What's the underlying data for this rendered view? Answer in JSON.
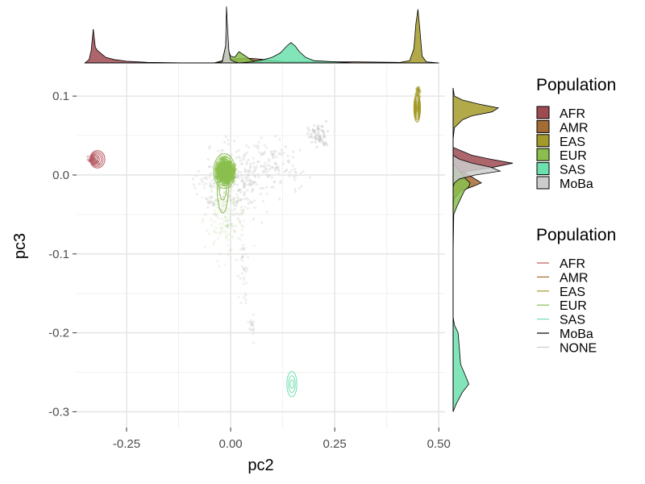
{
  "chart_data": {
    "type": "scatter",
    "xlabel": "pc2",
    "ylabel": "pc3",
    "xlim": [
      -0.37,
      0.515
    ],
    "ylim": [
      -0.32,
      0.14
    ],
    "x_ticks": [
      {
        "value": -0.25,
        "label": "-0.25"
      },
      {
        "value": 0.0,
        "label": "0.00"
      },
      {
        "value": 0.25,
        "label": "0.25"
      },
      {
        "value": 0.5,
        "label": "0.50"
      }
    ],
    "y_ticks": [
      {
        "value": 0.1,
        "label": "0.1"
      },
      {
        "value": 0.0,
        "label": "0.0"
      },
      {
        "value": -0.1,
        "label": "-0.1"
      },
      {
        "value": -0.2,
        "label": "-0.2"
      },
      {
        "value": -0.3,
        "label": "-0.3"
      }
    ],
    "grid": true,
    "legend_position": "right",
    "legends": [
      {
        "title": "Population",
        "kind": "fill",
        "entries": [
          {
            "label": "AFR",
            "color": "#9e4b52"
          },
          {
            "label": "AMR",
            "color": "#a56b35"
          },
          {
            "label": "EAS",
            "color": "#a49a2a"
          },
          {
            "label": "EUR",
            "color": "#8abf4f"
          },
          {
            "label": "SAS",
            "color": "#6ce0ad"
          },
          {
            "label": "MoBa",
            "color": "#cccccc"
          }
        ]
      },
      {
        "title": "Population",
        "kind": "line",
        "entries": [
          {
            "label": "AFR",
            "color": "#c0575f"
          },
          {
            "label": "AMR",
            "color": "#a56b35"
          },
          {
            "label": "EAS",
            "color": "#a49a2a"
          },
          {
            "label": "EUR",
            "color": "#8abf4f"
          },
          {
            "label": "SAS",
            "color": "#6ce0ad"
          },
          {
            "label": "MoBa",
            "color": "#000000"
          },
          {
            "label": "NONE",
            "color": "#cccccc"
          }
        ]
      }
    ],
    "clusters": [
      {
        "name": "AFR",
        "center": [
          -0.32,
          0.02
        ],
        "radii": [
          0.018,
          0.011
        ],
        "color": "#b85a62",
        "rings": 6
      },
      {
        "name": "EAS",
        "center": [
          0.448,
          0.085
        ],
        "radii": [
          0.008,
          0.018
        ],
        "color": "#a49a2a",
        "rings": 7
      },
      {
        "name": "SAS",
        "center": [
          0.147,
          -0.265
        ],
        "radii": [
          0.012,
          0.016
        ],
        "color": "#6ce0ad",
        "rings": 3
      },
      {
        "name": "EUR",
        "center": [
          -0.015,
          0.005
        ],
        "radii": [
          0.026,
          0.022
        ],
        "color": "#8abf4f",
        "rings": 7
      }
    ],
    "top_density": {
      "x": [
        -0.35,
        -0.34,
        -0.335,
        -0.33,
        -0.325,
        -0.32,
        -0.31,
        -0.3,
        -0.28,
        -0.25,
        -0.2,
        -0.1,
        -0.04,
        -0.02,
        -0.012,
        -0.01,
        -0.008,
        -0.004,
        0.0,
        0.01,
        0.02,
        0.05,
        0.08,
        0.1,
        0.12,
        0.135,
        0.145,
        0.155,
        0.165,
        0.18,
        0.2,
        0.3,
        0.4,
        0.43,
        0.44,
        0.445,
        0.45,
        0.455,
        0.46,
        0.47,
        0.5
      ],
      "series": [
        {
          "name": "AFR",
          "color": "#9e4b52",
          "values": [
            0.0,
            0.06,
            0.22,
            0.6,
            0.28,
            0.22,
            0.16,
            0.1,
            0.06,
            0.03,
            0.01,
            0.0,
            0.0,
            0.0,
            0.0,
            0.0,
            0.0,
            0.0,
            0.0,
            0.0,
            0.0,
            0.0,
            0.0,
            0.0,
            0.0,
            0.0,
            0.0,
            0.0,
            0.0,
            0.0,
            0.0,
            0.0,
            0.0,
            0.0,
            0.0,
            0.0,
            0.0,
            0.0,
            0.0,
            0.0,
            0.0
          ]
        },
        {
          "name": "AMR",
          "color": "#a56b35",
          "values": [
            0.0,
            0.0,
            0.0,
            0.0,
            0.0,
            0.0,
            0.0,
            0.0,
            0.0,
            0.0,
            0.0,
            0.0,
            0.0,
            0.02,
            0.06,
            0.1,
            0.1,
            0.08,
            0.08,
            0.06,
            0.08,
            0.08,
            0.06,
            0.04,
            0.03,
            0.02,
            0.02,
            0.02,
            0.02,
            0.02,
            0.02,
            0.02,
            0.01,
            0.0,
            0.0,
            0.0,
            0.0,
            0.0,
            0.0,
            0.0,
            0.0
          ]
        },
        {
          "name": "EAS",
          "color": "#a49a2a",
          "values": [
            0.0,
            0.0,
            0.0,
            0.0,
            0.0,
            0.0,
            0.0,
            0.0,
            0.0,
            0.0,
            0.0,
            0.0,
            0.0,
            0.0,
            0.0,
            0.0,
            0.0,
            0.0,
            0.0,
            0.0,
            0.0,
            0.0,
            0.0,
            0.0,
            0.0,
            0.0,
            0.0,
            0.0,
            0.0,
            0.0,
            0.0,
            0.0,
            0.0,
            0.04,
            0.25,
            0.7,
            0.95,
            0.55,
            0.12,
            0.02,
            0.0
          ]
        },
        {
          "name": "EUR",
          "color": "#8abf4f",
          "values": [
            0.0,
            0.0,
            0.0,
            0.0,
            0.0,
            0.0,
            0.0,
            0.0,
            0.0,
            0.0,
            0.0,
            0.0,
            0.0,
            0.04,
            0.3,
            0.5,
            0.35,
            0.2,
            0.12,
            0.1,
            0.2,
            0.05,
            0.0,
            0.0,
            0.0,
            0.0,
            0.0,
            0.0,
            0.0,
            0.0,
            0.0,
            0.0,
            0.0,
            0.0,
            0.0,
            0.0,
            0.0,
            0.0,
            0.0,
            0.0,
            0.0
          ]
        },
        {
          "name": "SAS",
          "color": "#6ce0ad",
          "values": [
            0.0,
            0.0,
            0.0,
            0.0,
            0.0,
            0.0,
            0.0,
            0.0,
            0.0,
            0.0,
            0.0,
            0.0,
            0.0,
            0.0,
            0.0,
            0.0,
            0.0,
            0.0,
            0.0,
            0.0,
            0.0,
            0.02,
            0.06,
            0.1,
            0.18,
            0.3,
            0.36,
            0.3,
            0.2,
            0.1,
            0.04,
            0.0,
            0.0,
            0.0,
            0.0,
            0.0,
            0.0,
            0.0,
            0.0,
            0.0,
            0.0
          ]
        },
        {
          "name": "MoBa",
          "color": "#cccccc",
          "values": [
            0.0,
            0.0,
            0.0,
            0.0,
            0.0,
            0.0,
            0.0,
            0.0,
            0.0,
            0.0,
            0.0,
            0.0,
            0.0,
            0.02,
            0.3,
            1.0,
            0.7,
            0.2,
            0.05,
            0.02,
            0.0,
            0.0,
            0.0,
            0.0,
            0.0,
            0.0,
            0.0,
            0.0,
            0.0,
            0.0,
            0.0,
            0.0,
            0.0,
            0.0,
            0.0,
            0.0,
            0.0,
            0.0,
            0.0,
            0.0,
            0.0
          ]
        }
      ]
    },
    "right_density": {
      "y": [
        0.11,
        0.1,
        0.095,
        0.09,
        0.085,
        0.08,
        0.075,
        0.07,
        0.06,
        0.045,
        0.035,
        0.025,
        0.02,
        0.015,
        0.01,
        0.005,
        0.0,
        -0.005,
        -0.01,
        -0.015,
        -0.02,
        -0.03,
        -0.04,
        -0.05,
        -0.1,
        -0.18,
        -0.19,
        -0.2,
        -0.22,
        -0.24,
        -0.255,
        -0.265,
        -0.275,
        -0.29,
        -0.3
      ],
      "series": [
        {
          "name": "AFR",
          "color": "#9e4b52",
          "values": [
            0.0,
            0.0,
            0.0,
            0.0,
            0.0,
            0.0,
            0.0,
            0.0,
            0.0,
            0.0,
            0.0,
            0.3,
            0.6,
            0.95,
            0.65,
            0.25,
            0.05,
            0.0,
            0.0,
            0.0,
            0.0,
            0.0,
            0.0,
            0.0,
            0.0,
            0.0,
            0.0,
            0.0,
            0.0,
            0.0,
            0.0,
            0.0,
            0.0,
            0.0,
            0.0
          ]
        },
        {
          "name": "AMR",
          "color": "#a56b35",
          "values": [
            0.0,
            0.0,
            0.0,
            0.0,
            0.0,
            0.0,
            0.0,
            0.0,
            0.0,
            0.0,
            0.0,
            0.0,
            0.0,
            0.0,
            0.0,
            0.1,
            0.25,
            0.35,
            0.45,
            0.3,
            0.12,
            0.02,
            0.0,
            0.0,
            0.0,
            0.0,
            0.0,
            0.0,
            0.0,
            0.0,
            0.0,
            0.0,
            0.0,
            0.0,
            0.0
          ]
        },
        {
          "name": "EAS",
          "color": "#a49a2a",
          "values": [
            0.0,
            0.02,
            0.15,
            0.4,
            0.72,
            0.62,
            0.3,
            0.15,
            0.02,
            0.0,
            0.0,
            0.0,
            0.0,
            0.0,
            0.0,
            0.0,
            0.0,
            0.0,
            0.0,
            0.0,
            0.0,
            0.0,
            0.0,
            0.0,
            0.0,
            0.0,
            0.0,
            0.0,
            0.0,
            0.0,
            0.0,
            0.0,
            0.0,
            0.0,
            0.0
          ]
        },
        {
          "name": "EUR",
          "color": "#8abf4f",
          "values": [
            0.0,
            0.0,
            0.0,
            0.0,
            0.0,
            0.0,
            0.0,
            0.0,
            0.0,
            0.0,
            0.0,
            0.0,
            0.0,
            0.0,
            0.05,
            0.1,
            0.15,
            0.2,
            0.27,
            0.25,
            0.18,
            0.12,
            0.06,
            0.01,
            0.0,
            0.0,
            0.0,
            0.0,
            0.0,
            0.0,
            0.0,
            0.0,
            0.0,
            0.0,
            0.0
          ]
        },
        {
          "name": "SAS",
          "color": "#6ce0ad",
          "values": [
            0.0,
            0.0,
            0.0,
            0.0,
            0.0,
            0.0,
            0.0,
            0.0,
            0.0,
            0.0,
            0.0,
            0.0,
            0.0,
            0.0,
            0.0,
            0.0,
            0.0,
            0.0,
            0.0,
            0.0,
            0.0,
            0.0,
            0.0,
            0.0,
            0.0,
            0.0,
            0.02,
            0.08,
            0.1,
            0.12,
            0.2,
            0.25,
            0.15,
            0.05,
            0.0
          ]
        },
        {
          "name": "MoBa",
          "color": "#cccccc",
          "values": [
            0.0,
            0.0,
            0.0,
            0.0,
            0.0,
            0.0,
            0.0,
            0.0,
            0.0,
            0.0,
            0.0,
            0.0,
            0.1,
            0.3,
            0.6,
            0.75,
            0.35,
            0.1,
            0.02,
            0.0,
            0.0,
            0.0,
            0.0,
            0.0,
            0.0,
            0.0,
            0.0,
            0.0,
            0.0,
            0.0,
            0.0,
            0.0,
            0.0,
            0.0,
            0.0
          ]
        }
      ]
    }
  }
}
